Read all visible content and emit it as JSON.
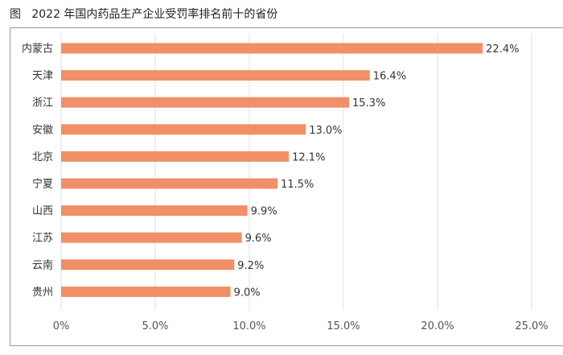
{
  "title": "图   2022 年国内药品生产企业受罚率排名前十的省份",
  "chart_data": {
    "type": "bar",
    "orientation": "horizontal",
    "categories": [
      "内蒙古",
      "天津",
      "浙江",
      "安徽",
      "北京",
      "宁夏",
      "山西",
      "江苏",
      "云南",
      "贵州"
    ],
    "values": [
      22.4,
      16.4,
      15.3,
      13.0,
      12.1,
      11.5,
      9.9,
      9.6,
      9.2,
      9.0
    ],
    "data_labels": [
      "22.4%",
      "16.4%",
      "15.3%",
      "13.0%",
      "12.1%",
      "11.5%",
      "9.9%",
      "9.6%",
      "9.2%",
      "9.0%"
    ],
    "xlim": [
      0,
      25
    ],
    "xticks": [
      0,
      5,
      10,
      15,
      20,
      25
    ],
    "xtick_labels": [
      "0%",
      "5.0%",
      "10.0%",
      "15.0%",
      "20.0%",
      "25.0%"
    ],
    "grid": "vertical",
    "bar_color": "#f08f68",
    "title": "图   2022 年国内药品生产企业受罚率排名前十的省份"
  }
}
